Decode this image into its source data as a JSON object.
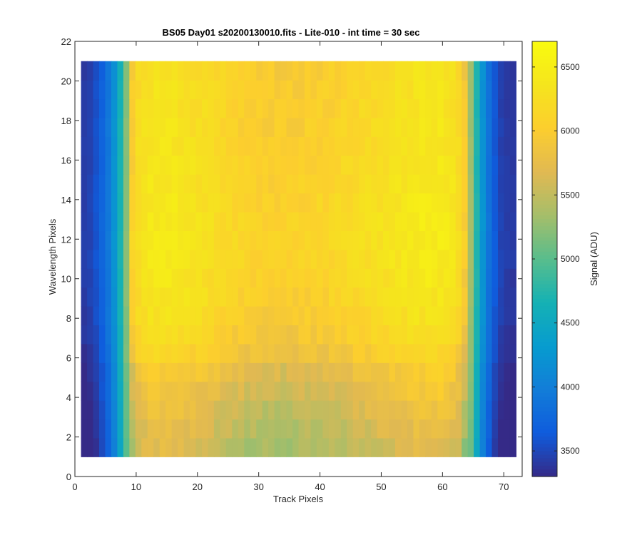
{
  "chart_data": {
    "type": "heatmap",
    "title": "BS05 Day01  s20200130010.fits - Lite-010 - int time = 30 sec",
    "xlabel": "Track Pixels",
    "ylabel": "Wavelength Pixels",
    "colorbar_label": "Signal (ADU)",
    "colormap": "parula",
    "xlim": [
      0,
      73
    ],
    "ylim": [
      0,
      22
    ],
    "x_ticks": [
      0,
      10,
      20,
      30,
      40,
      50,
      60,
      70
    ],
    "y_ticks": [
      0,
      2,
      4,
      6,
      8,
      10,
      12,
      14,
      16,
      18,
      20,
      22
    ],
    "clim": [
      3300,
      6700
    ],
    "colorbar_ticks": [
      3500,
      4000,
      4500,
      5000,
      5500,
      6000,
      6500
    ],
    "grid": false,
    "x_range": [
      1,
      72
    ],
    "y_range": [
      1,
      21
    ],
    "columns": 72,
    "rows": 21,
    "column_profile": [
      3400,
      3450,
      3550,
      3700,
      3900,
      4200,
      4650,
      5200,
      5980,
      6180,
      6260,
      6300,
      6320,
      6320,
      6310,
      6300,
      6280,
      6260,
      6240,
      6220,
      6200,
      6170,
      6140,
      6110,
      6080,
      6050,
      6030,
      6010,
      5990,
      5980,
      5970,
      5960,
      5960,
      5960,
      5960,
      5970,
      5980,
      5990,
      6000,
      6010,
      6020,
      6040,
      6060,
      6080,
      6100,
      6120,
      6140,
      6160,
      6180,
      6200,
      6220,
      6240,
      6260,
      6280,
      6300,
      6320,
      6330,
      6340,
      6340,
      6330,
      6310,
      6260,
      6150,
      5900,
      5300,
      4700,
      4200,
      3850,
      3600,
      3450,
      3400,
      3380
    ],
    "row_offset": [
      -620,
      -560,
      -490,
      -400,
      -320,
      -170,
      -80,
      0,
      40,
      70,
      100,
      110,
      110,
      100,
      80,
      60,
      40,
      30,
      20,
      10,
      0
    ]
  }
}
